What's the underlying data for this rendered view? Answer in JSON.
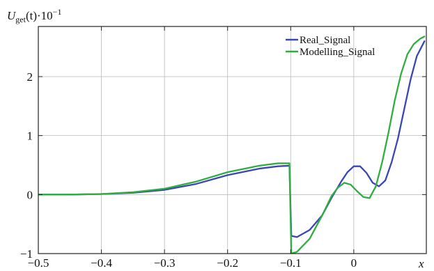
{
  "chart_data": {
    "type": "line",
    "title": "",
    "ylabel": "U_get(t)·10^-1",
    "xlabel": "x",
    "ylabel_parts": {
      "main": "U",
      "sub": "get",
      "mid": "(t)·10",
      "sup": "−1"
    },
    "xlim": [
      -0.5,
      0.115
    ],
    "ylim": [
      -1,
      2.85
    ],
    "xticks": [
      -0.5,
      -0.4,
      -0.3,
      -0.2,
      -0.1,
      0
    ],
    "xtick_labels": [
      "−0.5",
      "−0.4",
      "−0.3",
      "−0.2",
      "−0.1",
      "0"
    ],
    "yticks": [
      -1,
      0,
      1,
      2
    ],
    "ytick_labels": [
      "−1",
      "0",
      "1",
      "2"
    ],
    "grid": true,
    "legend_position": "top-right",
    "series": [
      {
        "name": "Real_Signal",
        "color": "#3a46b4",
        "points": [
          [
            -0.5,
            0.0
          ],
          [
            -0.45,
            0.0
          ],
          [
            -0.4,
            0.01
          ],
          [
            -0.35,
            0.03
          ],
          [
            -0.3,
            0.08
          ],
          [
            -0.25,
            0.18
          ],
          [
            -0.2,
            0.33
          ],
          [
            -0.15,
            0.44
          ],
          [
            -0.12,
            0.48
          ],
          [
            -0.102,
            0.49
          ],
          [
            -0.099,
            -0.7
          ],
          [
            -0.09,
            -0.72
          ],
          [
            -0.07,
            -0.6
          ],
          [
            -0.05,
            -0.35
          ],
          [
            -0.035,
            -0.05
          ],
          [
            -0.02,
            0.22
          ],
          [
            -0.01,
            0.38
          ],
          [
            0.0,
            0.48
          ],
          [
            0.01,
            0.48
          ],
          [
            0.02,
            0.37
          ],
          [
            0.03,
            0.2
          ],
          [
            0.04,
            0.14
          ],
          [
            0.05,
            0.24
          ],
          [
            0.06,
            0.55
          ],
          [
            0.07,
            0.95
          ],
          [
            0.08,
            1.45
          ],
          [
            0.09,
            1.95
          ],
          [
            0.1,
            2.35
          ],
          [
            0.112,
            2.6
          ]
        ]
      },
      {
        "name": "Modelling_Signal",
        "color": "#2fad3f",
        "points": [
          [
            -0.5,
            0.0
          ],
          [
            -0.45,
            0.0
          ],
          [
            -0.4,
            0.01
          ],
          [
            -0.35,
            0.04
          ],
          [
            -0.3,
            0.1
          ],
          [
            -0.25,
            0.22
          ],
          [
            -0.2,
            0.38
          ],
          [
            -0.15,
            0.49
          ],
          [
            -0.12,
            0.53
          ],
          [
            -0.102,
            0.53
          ],
          [
            -0.099,
            -1.0
          ],
          [
            -0.09,
            -0.97
          ],
          [
            -0.07,
            -0.75
          ],
          [
            -0.05,
            -0.35
          ],
          [
            -0.035,
            -0.02
          ],
          [
            -0.025,
            0.12
          ],
          [
            -0.015,
            0.2
          ],
          [
            -0.005,
            0.17
          ],
          [
            0.005,
            0.06
          ],
          [
            0.015,
            -0.04
          ],
          [
            0.025,
            -0.06
          ],
          [
            0.035,
            0.14
          ],
          [
            0.045,
            0.55
          ],
          [
            0.055,
            1.05
          ],
          [
            0.065,
            1.6
          ],
          [
            0.075,
            2.05
          ],
          [
            0.085,
            2.38
          ],
          [
            0.095,
            2.55
          ],
          [
            0.105,
            2.64
          ],
          [
            0.112,
            2.68
          ]
        ]
      }
    ]
  }
}
